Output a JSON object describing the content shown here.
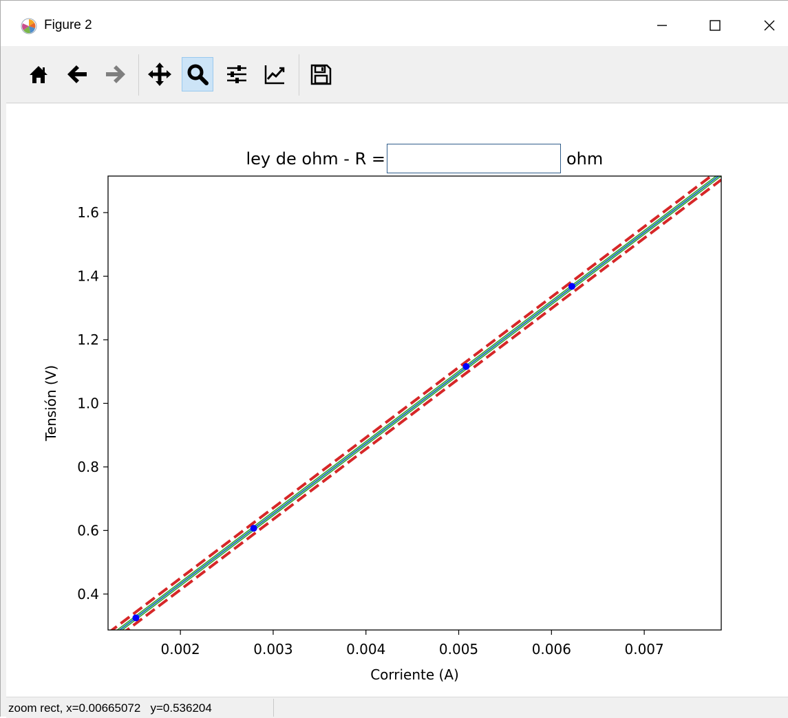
{
  "window": {
    "title": "Figure 2",
    "controls": {
      "minimize_icon": "minimize-icon",
      "maximize_icon": "maximize-icon",
      "close_icon": "close-icon"
    }
  },
  "toolbar": {
    "tools": [
      {
        "name": "home",
        "icon": "home-icon",
        "active": false
      },
      {
        "name": "back",
        "icon": "arrow-left-icon",
        "active": false
      },
      {
        "name": "forward",
        "icon": "arrow-right-icon",
        "active": false
      },
      {
        "name": "pan",
        "icon": "move-icon",
        "active": false
      },
      {
        "name": "zoom",
        "icon": "zoom-icon",
        "active": true
      },
      {
        "name": "subplots",
        "icon": "sliders-icon",
        "active": false
      },
      {
        "name": "axes",
        "icon": "line-chart-icon",
        "active": false
      },
      {
        "name": "save",
        "icon": "save-icon",
        "active": false
      }
    ]
  },
  "figure": {
    "title_prefix": "ley de ohm - R =",
    "title_suffix": "ohm",
    "resistance_input": {
      "value": "",
      "placeholder": ""
    }
  },
  "status": {
    "text": "zoom rect, x=0.00665072   y=0.536204"
  },
  "chart_data": {
    "type": "scatter",
    "title": "ley de ohm - R =  ohm",
    "xlabel": "Corriente (A)",
    "ylabel": "Tensión (V)",
    "xlim": [
      0.00122,
      0.00783
    ],
    "ylim": [
      0.287,
      1.715
    ],
    "xticks": [
      {
        "value": 0.002,
        "label": "0.002"
      },
      {
        "value": 0.003,
        "label": "0.003"
      },
      {
        "value": 0.004,
        "label": "0.004"
      },
      {
        "value": 0.005,
        "label": "0.005"
      },
      {
        "value": 0.006,
        "label": "0.006"
      },
      {
        "value": 0.007,
        "label": "0.007"
      }
    ],
    "yticks": [
      {
        "value": 0.4,
        "label": "0.4"
      },
      {
        "value": 0.6,
        "label": "0.6"
      },
      {
        "value": 0.8,
        "label": "0.8"
      },
      {
        "value": 1.0,
        "label": "1.0"
      },
      {
        "value": 1.2,
        "label": "1.2"
      },
      {
        "value": 1.4,
        "label": "1.4"
      },
      {
        "value": 1.6,
        "label": "1.6"
      }
    ],
    "grid": false,
    "points": {
      "color": "#0000ff",
      "x": [
        0.00152,
        0.00279,
        0.00508,
        0.00622
      ],
      "y": [
        0.325,
        0.607,
        1.116,
        1.368
      ]
    },
    "fit": {
      "slope": 221.2,
      "intercept": -0.0107,
      "line_color": "#1f77b4",
      "edge_color": "#2ca02c"
    },
    "bands": {
      "color": "#d62728",
      "style": "dashed",
      "offset": 0.018
    }
  }
}
